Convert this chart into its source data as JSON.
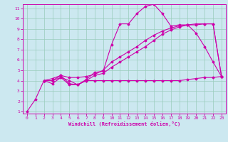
{
  "xlabel": "Windchill (Refroidissement éolien,°C)",
  "background_color": "#cce8f0",
  "grid_color": "#99ccbb",
  "line_color": "#cc00aa",
  "xmin": 0,
  "xmax": 23,
  "ymin": 1,
  "ymax": 11,
  "s1_x": [
    0,
    1,
    2,
    3,
    4,
    5,
    6,
    7,
    8,
    9,
    10,
    11,
    12,
    13,
    14,
    15,
    16,
    17,
    18,
    19,
    20,
    21,
    22,
    23
  ],
  "s1_y": [
    1.0,
    2.2,
    4.0,
    4.0,
    4.5,
    3.7,
    3.6,
    4.1,
    4.8,
    4.9,
    7.5,
    9.5,
    9.5,
    10.5,
    11.2,
    11.4,
    10.5,
    9.3,
    9.4,
    9.4,
    8.6,
    7.3,
    5.8,
    4.4
  ],
  "s2_x": [
    2,
    3,
    4,
    5,
    6,
    7,
    8,
    9,
    10,
    11,
    12,
    13,
    14,
    15,
    16,
    17,
    18,
    19,
    20,
    21,
    22,
    23
  ],
  "s2_y": [
    4.0,
    4.2,
    4.5,
    4.3,
    4.3,
    4.4,
    4.6,
    5.0,
    5.8,
    6.3,
    6.8,
    7.3,
    7.9,
    8.4,
    8.8,
    9.1,
    9.3,
    9.4,
    9.5,
    9.5,
    9.5,
    4.4
  ],
  "s3_x": [
    2,
    3,
    4,
    5,
    6,
    7,
    8,
    9,
    10,
    11,
    12,
    13,
    14,
    15,
    16,
    17,
    18,
    19,
    20,
    21,
    22,
    23
  ],
  "s3_y": [
    4.0,
    3.7,
    4.3,
    3.6,
    3.6,
    4.0,
    4.5,
    4.7,
    5.3,
    5.8,
    6.3,
    6.8,
    7.3,
    7.9,
    8.5,
    8.9,
    9.2,
    9.4,
    9.4,
    9.5,
    9.5,
    4.4
  ],
  "s4_x": [
    2,
    3,
    4,
    5,
    6,
    7,
    8,
    9,
    10,
    11,
    12,
    13,
    14,
    15,
    16,
    17,
    18,
    19,
    20,
    21,
    22,
    23
  ],
  "s4_y": [
    4.0,
    4.0,
    4.3,
    4.0,
    3.6,
    4.0,
    4.0,
    4.0,
    4.0,
    4.0,
    4.0,
    4.0,
    4.0,
    4.0,
    4.0,
    4.0,
    4.0,
    4.1,
    4.2,
    4.3,
    4.3,
    4.4
  ],
  "yticks": [
    1,
    2,
    3,
    4,
    5,
    6,
    7,
    8,
    9,
    10,
    11
  ],
  "xticks": [
    0,
    1,
    2,
    3,
    4,
    5,
    6,
    7,
    8,
    9,
    10,
    11,
    12,
    13,
    14,
    15,
    16,
    17,
    18,
    19,
    20,
    21,
    22,
    23
  ]
}
